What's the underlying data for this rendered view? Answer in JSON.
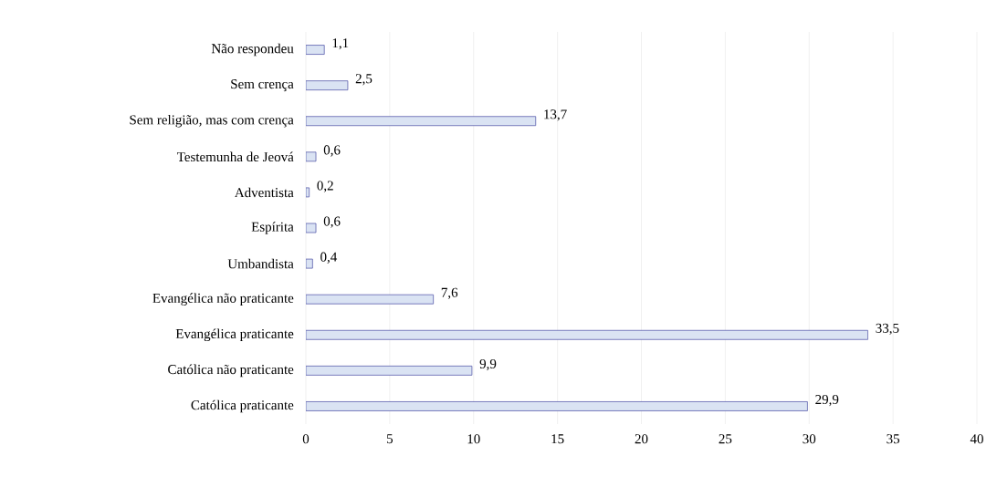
{
  "chart_data": {
    "type": "bar",
    "orientation": "horizontal",
    "categories": [
      "Não respondeu",
      "Sem crença",
      "Sem religião, mas com crença",
      "Testemunha de Jeová",
      "Adventista",
      "Espírita",
      "Umbandista",
      "Evangélica não praticante",
      "Evangélica praticante",
      "Católica não praticante",
      "Católica praticante"
    ],
    "values": [
      1.1,
      2.5,
      13.7,
      0.6,
      0.2,
      0.6,
      0.4,
      7.6,
      33.5,
      9.9,
      29.9
    ],
    "value_labels": [
      "1,1",
      "2,5",
      "13,7",
      "0,6",
      "0,2",
      "0,6",
      "0,4",
      "7,6",
      "33,5",
      "9,9",
      "29,9"
    ],
    "color": "#dae3f3",
    "xlim": [
      0,
      40
    ],
    "xticks": [
      0,
      5,
      10,
      15,
      20,
      25,
      30,
      35,
      40
    ],
    "grid": "x"
  }
}
